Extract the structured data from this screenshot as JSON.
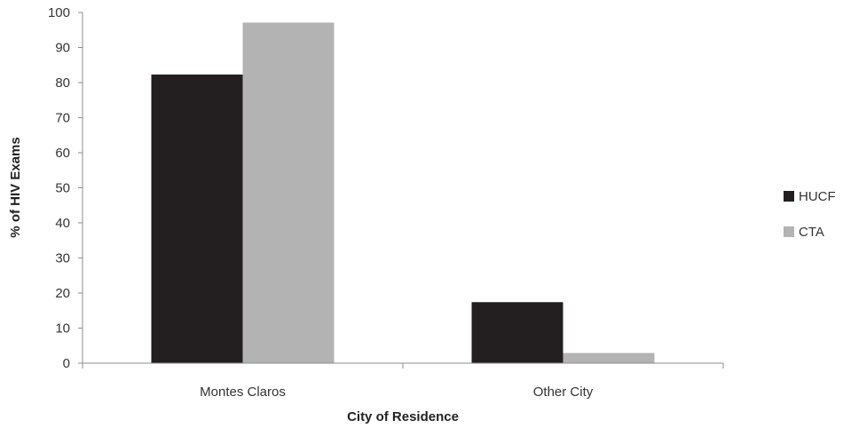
{
  "chart_data": {
    "type": "bar",
    "categories": [
      "Montes Claros",
      "Other City"
    ],
    "series": [
      {
        "name": "HUCF",
        "color": "#231f20",
        "values": [
          82.3,
          17.4
        ]
      },
      {
        "name": "CTA",
        "color": "#b3b3b3",
        "values": [
          97.1,
          2.9
        ]
      }
    ],
    "xlabel": "City of Residence",
    "ylabel": "% of HIV Exams",
    "ylim": [
      0,
      100
    ],
    "yticks": [
      "0",
      "10",
      "20",
      "30",
      "40",
      "50",
      "60",
      "70",
      "80",
      "90",
      "100"
    ],
    "grid": false,
    "legend_position": "right"
  }
}
